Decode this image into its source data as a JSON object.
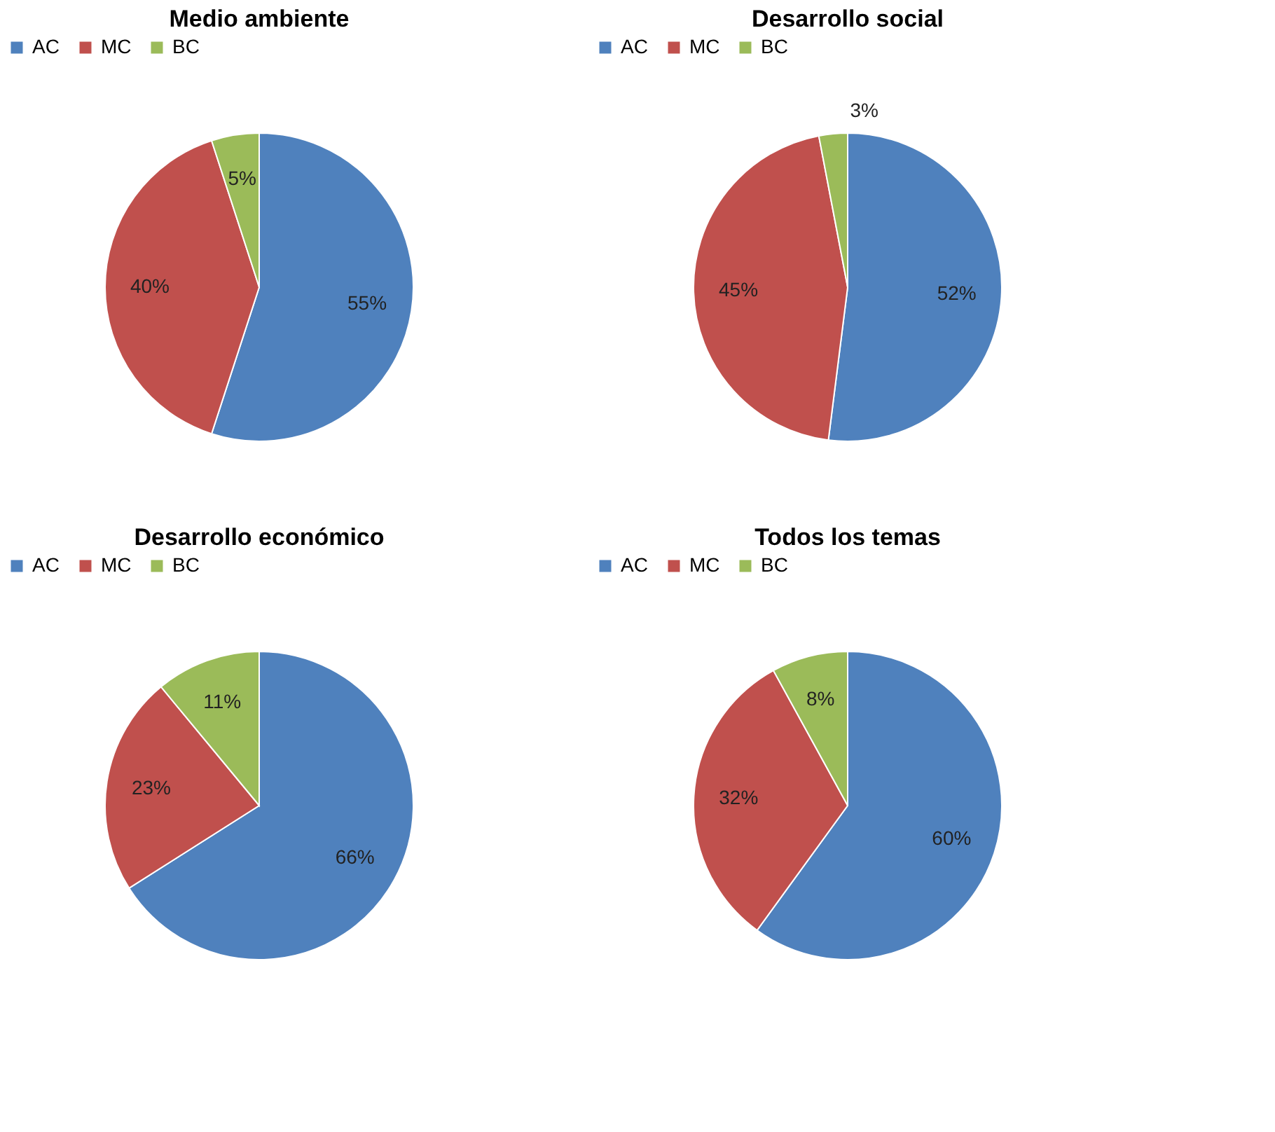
{
  "chart_data": [
    {
      "type": "pie",
      "title": "Medio ambiente",
      "categories": [
        "AC",
        "MC",
        "BC"
      ],
      "values": [
        55,
        40,
        5
      ],
      "colors": [
        "#4f81bd",
        "#c0504d",
        "#9bbb59"
      ],
      "value_labels": [
        "55%",
        "40%",
        "5%"
      ],
      "legend": "top"
    },
    {
      "type": "pie",
      "title": "Desarrollo social",
      "categories": [
        "AC",
        "MC",
        "BC"
      ],
      "values": [
        52,
        45,
        3
      ],
      "colors": [
        "#4f81bd",
        "#c0504d",
        "#9bbb59"
      ],
      "value_labels": [
        "52%",
        "45%",
        "3%"
      ],
      "legend": "top"
    },
    {
      "type": "pie",
      "title": "Desarrollo económico",
      "categories": [
        "AC",
        "MC",
        "BC"
      ],
      "values": [
        66,
        23,
        11
      ],
      "colors": [
        "#4f81bd",
        "#c0504d",
        "#9bbb59"
      ],
      "value_labels": [
        "66%",
        "23%",
        "11%"
      ],
      "legend": "top"
    },
    {
      "type": "pie",
      "title": "Todos los temas",
      "categories": [
        "AC",
        "MC",
        "BC"
      ],
      "values": [
        60,
        32,
        8
      ],
      "colors": [
        "#4f81bd",
        "#c0504d",
        "#9bbb59"
      ],
      "value_labels": [
        "60%",
        "32%",
        "8%"
      ],
      "legend": "top"
    }
  ]
}
